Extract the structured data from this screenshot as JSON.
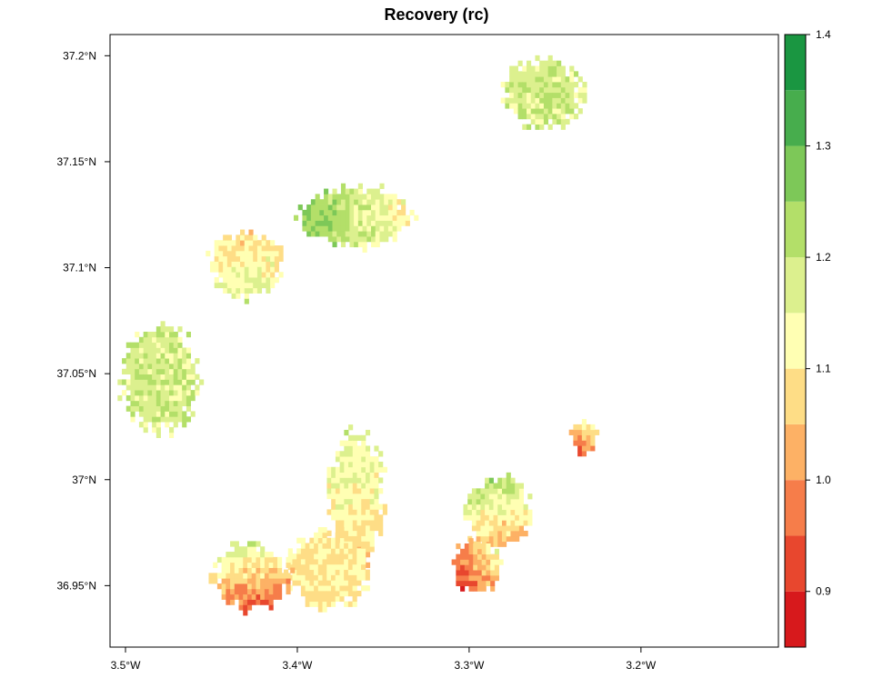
{
  "chart_data": {
    "type": "heatmap",
    "title": "Recovery (rc)",
    "subtitle": "",
    "x_axis": {
      "range": [
        -3.509,
        -3.12
      ],
      "ticks": [
        {
          "value": -3.5,
          "label": "3.5°W"
        },
        {
          "value": -3.4,
          "label": "3.4°W"
        },
        {
          "value": -3.3,
          "label": "3.3°W"
        },
        {
          "value": -3.2,
          "label": "3.2°W"
        }
      ]
    },
    "y_axis": {
      "range": [
        36.921,
        37.21
      ],
      "ticks": [
        {
          "value": 36.95,
          "label": "36.95°N"
        },
        {
          "value": 37.0,
          "label": "37°N"
        },
        {
          "value": 37.05,
          "label": "37.05°N"
        },
        {
          "value": 37.1,
          "label": "37.1°N"
        },
        {
          "value": 37.15,
          "label": "37.15°N"
        },
        {
          "value": 37.2,
          "label": "37.2°N"
        }
      ]
    },
    "legend": {
      "placement": "right",
      "range": [
        0.85,
        1.4
      ],
      "classes": [
        {
          "from": 0.85,
          "to": 0.9,
          "color": "#d7191c"
        },
        {
          "from": 0.9,
          "to": 0.95,
          "color": "#e8472e"
        },
        {
          "from": 0.95,
          "to": 1.0,
          "color": "#f67d4a"
        },
        {
          "from": 1.0,
          "to": 1.05,
          "color": "#fdb165"
        },
        {
          "from": 1.05,
          "to": 1.1,
          "color": "#fedd86"
        },
        {
          "from": 1.1,
          "to": 1.15,
          "color": "#ffffb3"
        },
        {
          "from": 1.15,
          "to": 1.2,
          "color": "#dcf08e"
        },
        {
          "from": 1.2,
          "to": 1.25,
          "color": "#b3df69"
        },
        {
          "from": 1.25,
          "to": 1.3,
          "color": "#7dc858"
        },
        {
          "from": 1.3,
          "to": 1.35,
          "color": "#47ad4d"
        },
        {
          "from": 1.35,
          "to": 1.4,
          "color": "#1a9641"
        }
      ],
      "ticks": [
        {
          "value": 0.9,
          "label": "0.9"
        },
        {
          "value": 1.0,
          "label": "1.0"
        },
        {
          "value": 1.1,
          "label": "1.1"
        },
        {
          "value": 1.2,
          "label": "1.2"
        },
        {
          "value": 1.3,
          "label": "1.3"
        },
        {
          "value": 1.4,
          "label": "1.4"
        }
      ]
    },
    "patches": [
      {
        "center": [
          -3.258,
          37.181
        ],
        "radius": [
          0.022,
          0.016
        ],
        "mean": 1.18,
        "gradient": [
          0.0,
          0.0
        ]
      },
      {
        "center": [
          -3.368,
          37.123
        ],
        "radius": [
          0.032,
          0.014
        ],
        "mean": 1.19,
        "gradient": [
          -0.08,
          0.0
        ]
      },
      {
        "center": [
          -3.431,
          37.1
        ],
        "radius": [
          0.021,
          0.015
        ],
        "mean": 1.12,
        "gradient": [
          0.0,
          -0.05
        ]
      },
      {
        "center": [
          -3.481,
          37.046
        ],
        "radius": [
          0.022,
          0.024
        ],
        "mean": 1.18,
        "gradient": [
          0.0,
          0.0
        ]
      },
      {
        "center": [
          -3.234,
          37.019
        ],
        "radius": [
          0.008,
          0.008
        ],
        "mean": 1.04,
        "gradient": [
          0.05,
          0.1
        ]
      },
      {
        "center": [
          -3.285,
          36.983
        ],
        "radius": [
          0.018,
          0.017
        ],
        "mean": 1.12,
        "gradient": [
          -0.02,
          0.1
        ]
      },
      {
        "center": [
          -3.297,
          36.958
        ],
        "radius": [
          0.014,
          0.012
        ],
        "mean": 1.02,
        "gradient": [
          0.08,
          0.05
        ]
      },
      {
        "center": [
          -3.367,
          36.99
        ],
        "radius": [
          0.016,
          0.03
        ],
        "mean": 1.12,
        "gradient": [
          0.0,
          0.05
        ]
      },
      {
        "center": [
          -3.383,
          36.956
        ],
        "radius": [
          0.023,
          0.018
        ],
        "mean": 1.1,
        "gradient": [
          0.0,
          0.0
        ]
      },
      {
        "center": [
          -3.428,
          36.953
        ],
        "radius": [
          0.022,
          0.015
        ],
        "mean": 1.06,
        "gradient": [
          -0.02,
          0.12
        ]
      }
    ]
  }
}
